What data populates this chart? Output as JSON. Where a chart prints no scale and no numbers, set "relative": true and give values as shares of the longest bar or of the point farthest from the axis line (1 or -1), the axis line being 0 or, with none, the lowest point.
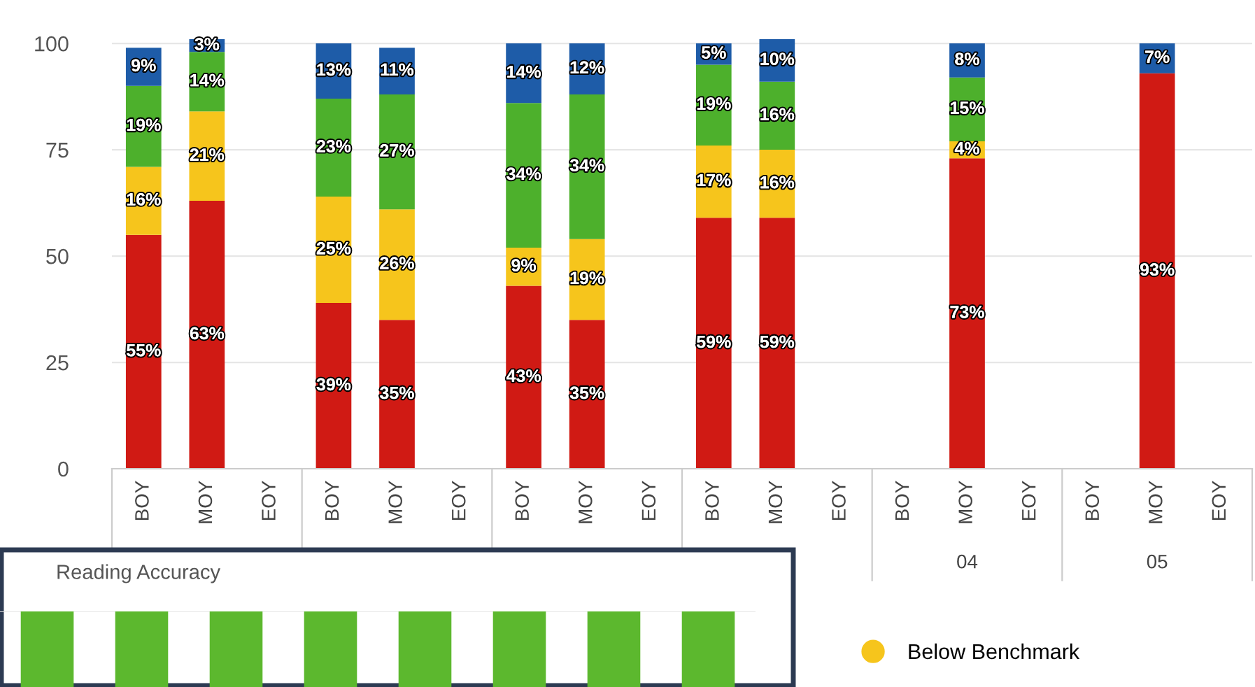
{
  "chart_data": [
    {
      "type": "bar",
      "stacked": true,
      "categories": [
        "BOY",
        "MOY",
        "EOY",
        "BOY",
        "MOY",
        "EOY",
        "BOY",
        "MOY",
        "EOY",
        "BOY",
        "MOY",
        "EOY",
        "BOY",
        "MOY",
        "EOY",
        "BOY",
        "MOY",
        "EOY"
      ],
      "series": [
        {
          "color": "#d01a14",
          "values": [
            55,
            63,
            null,
            39,
            35,
            null,
            43,
            35,
            null,
            59,
            59,
            null,
            null,
            73,
            null,
            null,
            93,
            null
          ],
          "value_labels": [
            "55%",
            "63%",
            null,
            "39%",
            "35%",
            null,
            "43%",
            "35%",
            null,
            "59%",
            "59%",
            null,
            null,
            "73%",
            null,
            null,
            "93%",
            null
          ]
        },
        {
          "name": "Below Benchmark",
          "color": "#f6c51c",
          "values": [
            16,
            21,
            null,
            25,
            26,
            null,
            9,
            19,
            null,
            17,
            16,
            null,
            null,
            4,
            null,
            null,
            null,
            null
          ],
          "value_labels": [
            "16%",
            "21%",
            null,
            "25%",
            "26%",
            null,
            "9%",
            "19%",
            null,
            "17%",
            "16%",
            null,
            null,
            "4%",
            null,
            null,
            null,
            null
          ]
        },
        {
          "color": "#4db02c",
          "values": [
            19,
            14,
            null,
            23,
            27,
            null,
            34,
            34,
            null,
            19,
            16,
            null,
            null,
            15,
            null,
            null,
            null,
            null
          ],
          "value_labels": [
            "19%",
            "14%",
            null,
            "23%",
            "27%",
            null,
            "34%",
            "34%",
            null,
            "19%",
            "16%",
            null,
            null,
            "15%",
            null,
            null,
            null,
            null
          ]
        },
        {
          "color": "#1e5ca8",
          "values": [
            9,
            3,
            null,
            13,
            11,
            null,
            14,
            12,
            null,
            5,
            10,
            null,
            null,
            8,
            null,
            null,
            7,
            null
          ],
          "value_labels": [
            "9%",
            "3%",
            null,
            "13%",
            "11%",
            null,
            "14%",
            "12%",
            null,
            "5%",
            "10%",
            null,
            null,
            "8%",
            null,
            null,
            "7%",
            null
          ]
        }
      ],
      "ylim": [
        0,
        101
      ],
      "yticks": [
        0,
        25,
        50,
        75,
        100
      ],
      "grid": "y",
      "legend": "bottom",
      "annotations": [
        "04",
        "05"
      ]
    },
    {
      "type": "bar",
      "title": "Reading Accuracy",
      "relative": true,
      "categories": [
        null,
        null,
        null,
        null,
        null,
        null,
        null,
        null
      ],
      "series": [
        {
          "color": "#5cb82e",
          "values": [
            1,
            1,
            1,
            1,
            1,
            1,
            1,
            1
          ]
        }
      ]
    }
  ]
}
